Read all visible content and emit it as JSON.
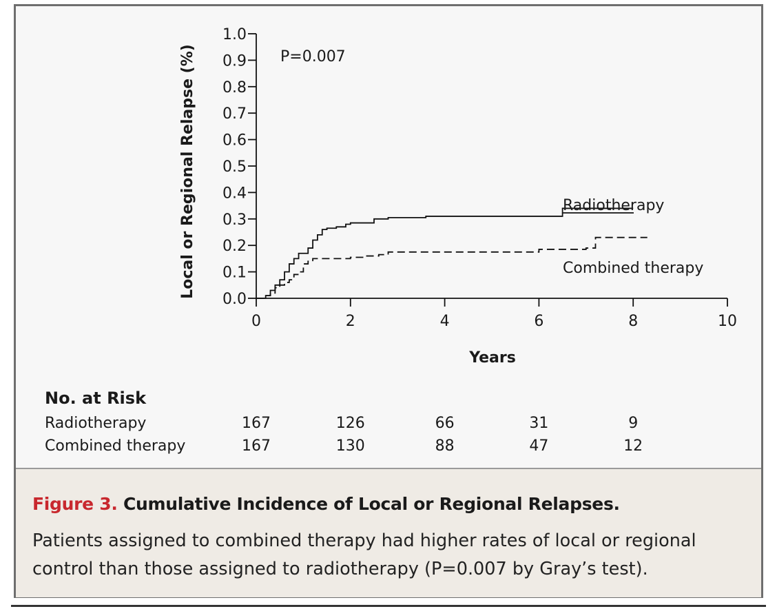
{
  "chart_data": {
    "type": "line",
    "annotation": "P=0.007",
    "ylabel": "Local or Regional Relapse (%)",
    "xlabel": "Years",
    "ylim": [
      0,
      1.0
    ],
    "xlim": [
      0,
      10
    ],
    "yticks": [
      "0.0",
      "0.1",
      "0.2",
      "0.3",
      "0.4",
      "0.5",
      "0.6",
      "0.7",
      "0.8",
      "0.9",
      "1.0"
    ],
    "xticks": [
      "0",
      "2",
      "4",
      "6",
      "8",
      "10"
    ],
    "series": [
      {
        "name": "Radiotherapy",
        "style": "solid",
        "x": [
          0,
          0.2,
          0.3,
          0.4,
          0.5,
          0.6,
          0.7,
          0.8,
          0.9,
          1.0,
          1.1,
          1.2,
          1.3,
          1.4,
          1.5,
          1.7,
          1.9,
          2.0,
          2.5,
          2.6,
          2.8,
          3.6,
          4.0,
          6.5,
          8.0
        ],
        "y": [
          0,
          0.01,
          0.03,
          0.05,
          0.07,
          0.1,
          0.13,
          0.15,
          0.17,
          0.17,
          0.19,
          0.22,
          0.24,
          0.26,
          0.265,
          0.27,
          0.28,
          0.285,
          0.3,
          0.3,
          0.305,
          0.31,
          0.31,
          0.34,
          0.34
        ]
      },
      {
        "name": "Combined therapy",
        "style": "dashed",
        "x": [
          0,
          0.15,
          0.3,
          0.4,
          0.5,
          0.6,
          0.7,
          0.8,
          0.9,
          1.0,
          1.1,
          1.2,
          1.5,
          2.0,
          2.3,
          2.6,
          2.8,
          4.0,
          5.9,
          6.0,
          7.0,
          7.2,
          8.3
        ],
        "y": [
          0,
          0.01,
          0.02,
          0.04,
          0.05,
          0.06,
          0.07,
          0.09,
          0.1,
          0.13,
          0.14,
          0.15,
          0.15,
          0.155,
          0.16,
          0.165,
          0.175,
          0.175,
          0.175,
          0.185,
          0.19,
          0.23,
          0.23
        ]
      }
    ]
  },
  "risk_table": {
    "title": "No. at Risk",
    "rows": [
      {
        "label": "Radiotherapy",
        "values": [
          "167",
          "126",
          "66",
          "31",
          "9"
        ]
      },
      {
        "label": "Combined therapy",
        "values": [
          "167",
          "130",
          "88",
          "47",
          "12"
        ]
      }
    ]
  },
  "caption": {
    "figure_label": "Figure 3.",
    "title": "Cumulative Incidence of Local or Regional Relapses.",
    "body": "Patients assigned to combined therapy had higher rates of local or regional control than those assigned to radiotherapy (P=0.007 by Gray’s test)."
  },
  "colors": {
    "caption_bg": "#efebe5",
    "figure_label": "#c8282e",
    "line": "#111111"
  }
}
